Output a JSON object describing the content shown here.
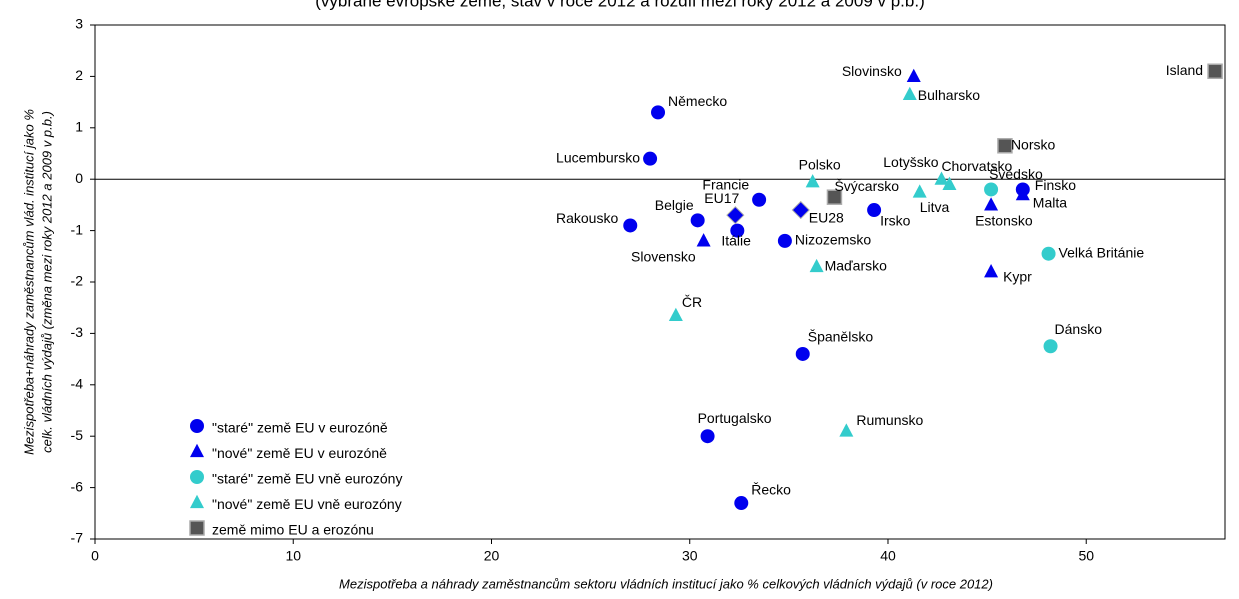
{
  "chart_data": {
    "type": "scatter",
    "title": "(vybrané evropské země, stav v roce 2012 a rozdíl mezi roky 2012 a 2009 v p.b.)",
    "x_label": "Mezispotřeba a náhrady zaměstnancům sektoru vládních institucí jako % celkových vládních výdajů (v roce 2012)",
    "y_label": [
      "Mezispotřeba+náhrady zaměstnancům vlád. institucí jako %",
      "celk. vládních výdajů (změna mezi roky 2012 a 2009 v p.b.)"
    ],
    "xlim": [
      0,
      57
    ],
    "xticks": [
      0,
      10,
      20,
      30,
      40,
      50
    ],
    "ylim": [
      -7,
      3
    ],
    "yticks": [
      -7,
      -6,
      -5,
      -4,
      -3,
      -2,
      -1,
      0,
      1,
      2,
      3
    ],
    "legend": "lower left",
    "series": [
      {
        "name": "\"staré\" země EU v eurozóně",
        "color": "#0000ee",
        "marker": "circle",
        "labels": [
          "Německo",
          "Lucembursko",
          "Rakousko",
          "Belgie",
          "Itálie",
          "Francie",
          "Nizozemsko",
          "Irsko",
          "Finsko",
          "Španělsko",
          "Portugalsko",
          "Řecko"
        ],
        "x": [
          28.4,
          28.0,
          27.0,
          30.4,
          32.4,
          33.5,
          34.8,
          39.3,
          46.8,
          35.7,
          30.9,
          32.6
        ],
        "values": [
          1.3,
          0.4,
          -0.9,
          -0.8,
          -1.0,
          -0.4,
          -1.2,
          -0.6,
          -0.2,
          -3.4,
          -5.0,
          -6.3
        ]
      },
      {
        "name": "\"nové\" země EU v eurozóně",
        "color": "#0000ee",
        "marker": "triangle",
        "labels": [
          "Slovinsko",
          "Slovensko",
          "Estonsko",
          "Malta",
          "Kypr"
        ],
        "x": [
          41.3,
          30.7,
          45.2,
          46.8,
          45.2
        ],
        "values": [
          2.0,
          -1.2,
          -0.5,
          -0.3,
          -1.8
        ]
      },
      {
        "name": "\"staré\" země EU vně eurozóny",
        "color": "#33cccc",
        "marker": "circle",
        "labels": [
          "Švédsko",
          "Velká Británie",
          "Dánsko"
        ],
        "x": [
          45.2,
          48.1,
          48.2
        ],
        "values": [
          -0.2,
          -1.45,
          -3.25
        ]
      },
      {
        "name": "\"nové\" země EU vně eurozóny",
        "color": "#33cccc",
        "marker": "triangle",
        "labels": [
          "Bulharsko",
          "Polsko",
          "Lotyšsko",
          "Chorvatsko",
          "Litva",
          "Maďarsko",
          "ČR",
          "Rumunsko"
        ],
        "x": [
          41.1,
          36.2,
          42.7,
          43.1,
          41.6,
          36.4,
          29.3,
          37.9
        ],
        "values": [
          1.65,
          -0.05,
          0.0,
          -0.1,
          -0.25,
          -1.7,
          -2.65,
          -4.9
        ]
      },
      {
        "name": "země mimo EU a erozónu",
        "color": "#555555",
        "marker": "square",
        "labels": [
          "Norsko",
          "Švýcarsko",
          "Island"
        ],
        "x": [
          45.9,
          37.3,
          56.5
        ],
        "values": [
          0.65,
          -0.35,
          2.1
        ]
      },
      {
        "color": "#0000ee",
        "marker": "diamond",
        "labels": [
          "EU17",
          "EU28"
        ],
        "x": [
          32.3,
          35.6
        ],
        "values": [
          -0.7,
          -0.6
        ]
      }
    ]
  }
}
